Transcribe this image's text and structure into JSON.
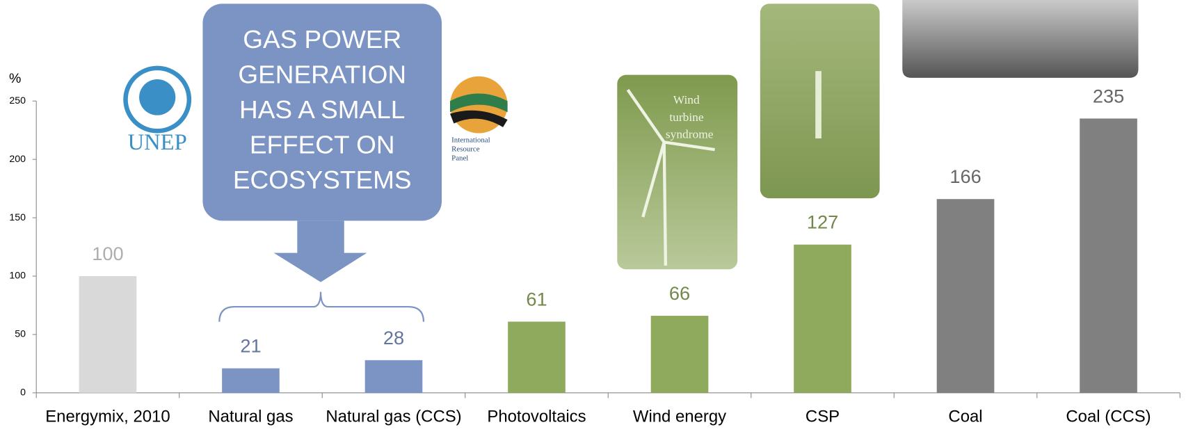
{
  "chart_data": {
    "type": "bar",
    "y_label": "%",
    "categories": [
      "Energymix, 2010",
      "Natural gas",
      "Natural gas (CCS)",
      "Photovoltaics",
      "Wind energy",
      "CSP",
      "Coal",
      "Coal (CCS)"
    ],
    "values": [
      100,
      21,
      28,
      61,
      66,
      127,
      166,
      235
    ],
    "colors": [
      "#d9d9d9",
      "#7b94c4",
      "#7b94c4",
      "#8faa5d",
      "#8faa5d",
      "#8faa5d",
      "#808080",
      "#808080"
    ],
    "ylim": [
      0,
      250
    ],
    "yticks": [
      0,
      50,
      100,
      150,
      200,
      250
    ],
    "callout": [
      "GAS  POWER",
      "GENERATION",
      "HAS  A SMALL",
      "EFFECT  ON",
      "ECOSYSTEMS"
    ],
    "logos": {
      "unep": "UNEP",
      "irp": [
        "International",
        "Resource",
        "Panel"
      ]
    },
    "photo_text": [
      "Wind",
      "turbine",
      "syndrome"
    ]
  }
}
